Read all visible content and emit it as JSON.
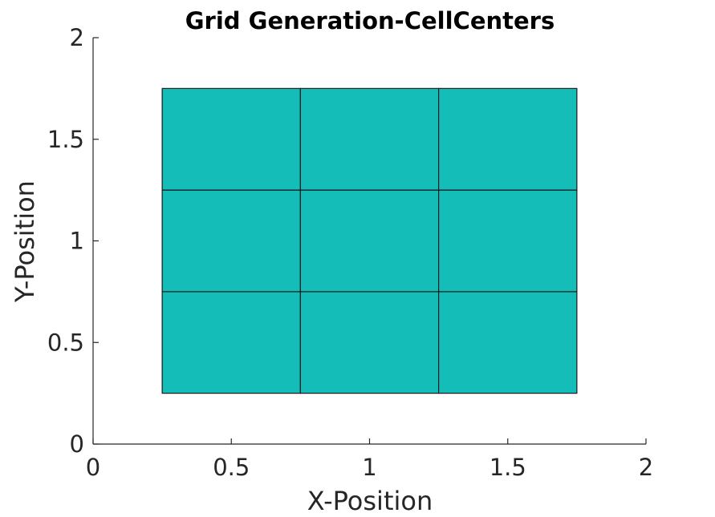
{
  "chart_data": {
    "type": "heatmap",
    "title": "Grid Generation-CellCenters",
    "xlabel": "X-Position",
    "ylabel": "Y-Position",
    "xlim": [
      0,
      2
    ],
    "ylim": [
      0,
      2
    ],
    "xticks": [
      0,
      0.5,
      1,
      1.5,
      2
    ],
    "yticks": [
      0,
      0.5,
      1,
      1.5,
      2
    ],
    "xtick_labels": [
      "0",
      "0.5",
      "1",
      "1.5",
      "2"
    ],
    "ytick_labels": [
      "0",
      "0.5",
      "1",
      "1.5",
      "2"
    ],
    "grid": false,
    "cell_color": "#14bdb8",
    "edge_color": "#1a1a1a",
    "x_edges": [
      0.25,
      0.75,
      1.25,
      1.75
    ],
    "y_edges": [
      0.25,
      0.75,
      1.25,
      1.75
    ],
    "cell_centers_x": [
      0.5,
      1.0,
      1.5
    ],
    "cell_centers_y": [
      0.5,
      1.0,
      1.5
    ]
  }
}
